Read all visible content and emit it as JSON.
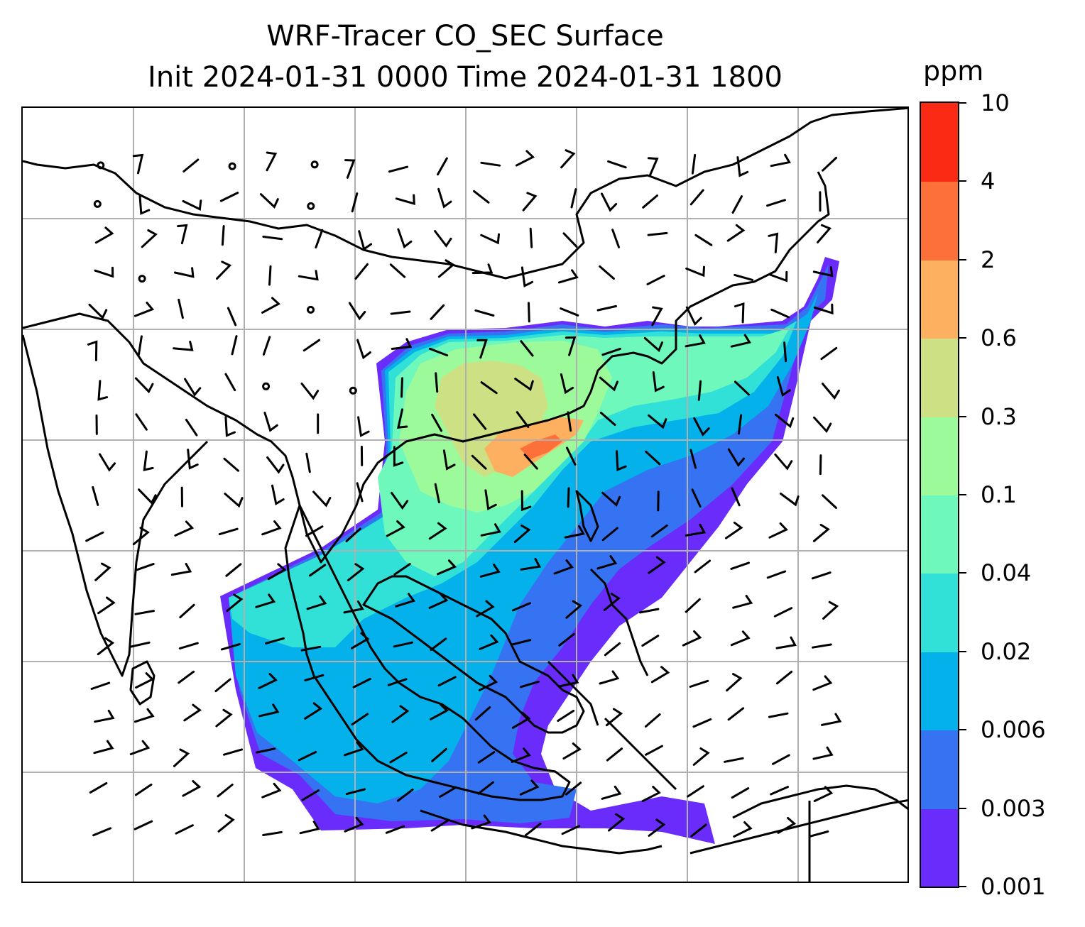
{
  "title_line1": "WRF-Tracer CO_SEC Surface",
  "title_line2": "Init 2024-01-31 0000 Time 2024-01-31 1800",
  "colorbar": {
    "unit": "ppm",
    "ticks": [
      "0.001",
      "0.003",
      "0.006",
      "0.02",
      "0.04",
      "0.1",
      "0.3",
      "0.6",
      "2",
      "4",
      "10"
    ],
    "colors": [
      "#6a2cfb",
      "#3573f2",
      "#05b1ea",
      "#31e0d6",
      "#6ef8bb",
      "#9cfa9a",
      "#cde184",
      "#fdb05f",
      "#fd703a",
      "#fb2a15"
    ]
  },
  "map": {
    "projection": "lat-lon",
    "gridlines": "on",
    "field": "CO_SEC surface concentration with wind barbs",
    "colors": {
      "coast": "#000000",
      "grid": "#b0b0b0"
    }
  }
}
